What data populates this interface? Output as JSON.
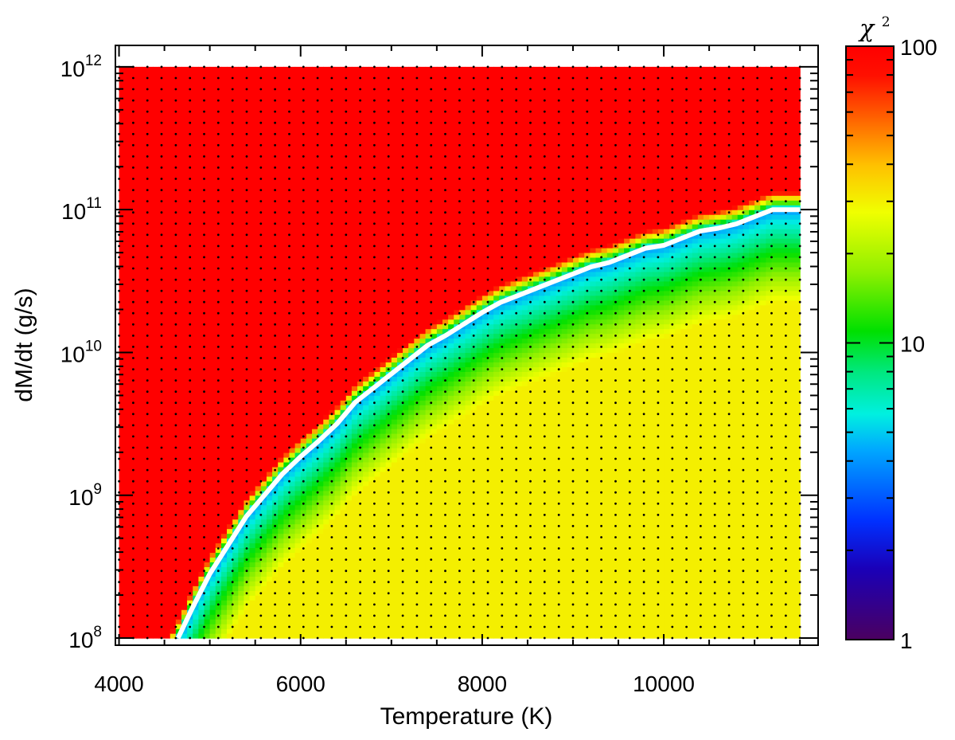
{
  "chart_data": {
    "type": "heatmap",
    "xlabel": "Temperature (K)",
    "ylabel": "dM/dt (g/s)",
    "xlim": [
      3960,
      11700
    ],
    "ylim_log10": [
      7.95,
      12.15
    ],
    "y_scale": "log",
    "x_ticks": [
      4000,
      6000,
      8000,
      10000
    ],
    "x_tick_labels": [
      "4000",
      "6000",
      "8000",
      "10000"
    ],
    "y_ticks_log10": [
      8,
      9,
      10,
      11,
      12
    ],
    "y_tick_labels": [
      {
        "base": "10",
        "exp": "8"
      },
      {
        "base": "10",
        "exp": "9"
      },
      {
        "base": "10",
        "exp": "10"
      },
      {
        "base": "10",
        "exp": "11"
      },
      {
        "base": "10",
        "exp": "12"
      }
    ],
    "grid_x_range": [
      4000,
      11500
    ],
    "grid_y_log10_range": [
      8,
      12
    ],
    "colorbar": {
      "title_base": "χ",
      "title_exp": "2",
      "scale": "log",
      "range": [
        1,
        100
      ],
      "tick_labels": [
        "100",
        "10",
        "1"
      ],
      "tick_values": [
        100,
        10,
        1
      ]
    },
    "best_fit_curve": {
      "color": "#ffffff",
      "points": [
        [
          4650,
          8.0
        ],
        [
          4800,
          8.2
        ],
        [
          5000,
          8.45
        ],
        [
          5200,
          8.65
        ],
        [
          5400,
          8.85
        ],
        [
          5600,
          9.0
        ],
        [
          5800,
          9.15
        ],
        [
          6000,
          9.27
        ],
        [
          6200,
          9.38
        ],
        [
          6400,
          9.5
        ],
        [
          6600,
          9.65
        ],
        [
          6800,
          9.75
        ],
        [
          7000,
          9.85
        ],
        [
          7200,
          9.95
        ],
        [
          7400,
          10.05
        ],
        [
          7600,
          10.12
        ],
        [
          7800,
          10.2
        ],
        [
          8000,
          10.28
        ],
        [
          8200,
          10.35
        ],
        [
          8400,
          10.4
        ],
        [
          8600,
          10.45
        ],
        [
          8800,
          10.5
        ],
        [
          9000,
          10.55
        ],
        [
          9200,
          10.6
        ],
        [
          9400,
          10.63
        ],
        [
          9600,
          10.68
        ],
        [
          9800,
          10.73
        ],
        [
          10000,
          10.75
        ],
        [
          10200,
          10.8
        ],
        [
          10400,
          10.85
        ],
        [
          10600,
          10.87
        ],
        [
          10800,
          10.9
        ],
        [
          11000,
          10.95
        ],
        [
          11200,
          11.0
        ],
        [
          11500,
          11.0
        ]
      ]
    }
  }
}
